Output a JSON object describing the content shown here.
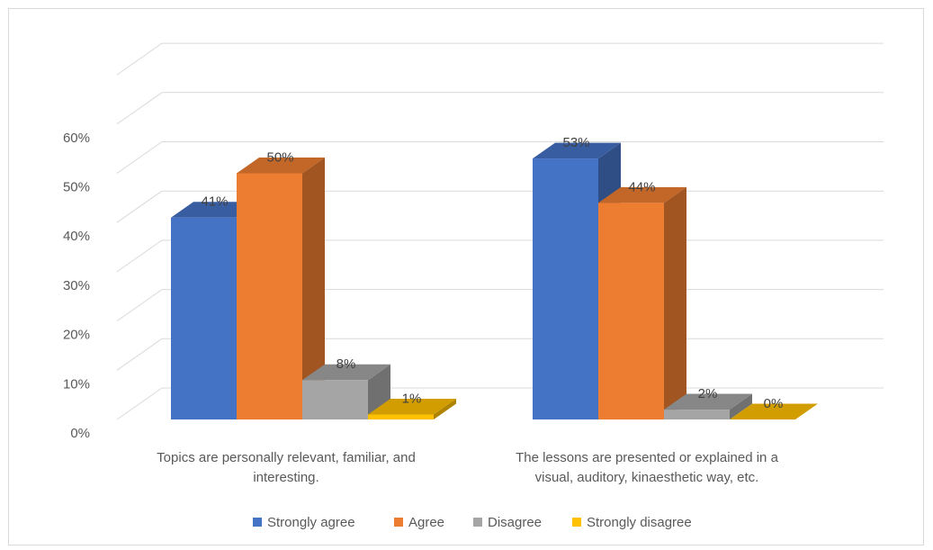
{
  "chart_data": {
    "type": "bar",
    "style": "3d-clustered-column",
    "categories": [
      [
        "Topics are personally relevant, familiar, and",
        "interesting."
      ],
      [
        "The lessons are presented or explained in a",
        "visual, auditory, kinaesthetic way, etc."
      ]
    ],
    "series": [
      {
        "name": "Strongly agree",
        "values": [
          41,
          53
        ],
        "labels": [
          "41%",
          "53%"
        ],
        "color": "#4472C4"
      },
      {
        "name": "Agree",
        "values": [
          50,
          44
        ],
        "labels": [
          "50%",
          "44%"
        ],
        "color": "#ED7D31"
      },
      {
        "name": "Disagree",
        "values": [
          8,
          2
        ],
        "labels": [
          "8%",
          "2%"
        ],
        "color": "#A5A5A5"
      },
      {
        "name": "Strongly disagree",
        "values": [
          1,
          0
        ],
        "labels": [
          "1%",
          "0%"
        ],
        "color": "#FFC000"
      }
    ],
    "y_ticks": [
      "0%",
      "10%",
      "20%",
      "30%",
      "40%",
      "50%",
      "60%"
    ],
    "ylim": [
      0,
      60
    ],
    "grid": true,
    "legend": "bottom",
    "title": "",
    "xlabel": "",
    "ylabel": ""
  }
}
